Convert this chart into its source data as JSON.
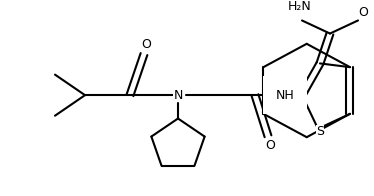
{
  "bg_color": "#ffffff",
  "line_color": "#000000",
  "lw": 1.5,
  "fs": 8.5,
  "xlim": [
    0,
    374
  ],
  "ylim": [
    0,
    196
  ]
}
